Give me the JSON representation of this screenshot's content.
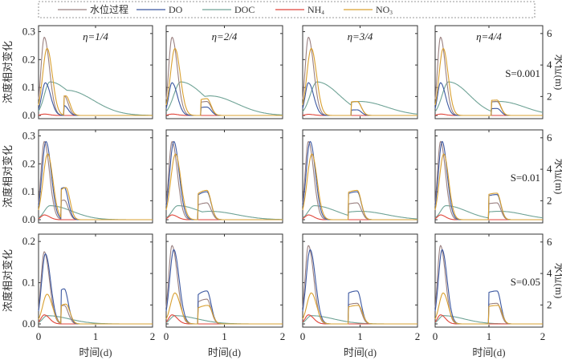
{
  "chart_data": {
    "type": "line",
    "legend": {
      "placement": "top",
      "entries": [
        {
          "key": "wl",
          "label": "水位过程",
          "color": "#9a8080"
        },
        {
          "key": "do",
          "label": "DO",
          "color": "#3b57a0"
        },
        {
          "key": "doc",
          "label": "DOC",
          "color": "#6fa396"
        },
        {
          "key": "nh4",
          "label": "NH",
          "sub": "4",
          "color": "#e0453a"
        },
        {
          "key": "no3",
          "label": "NO",
          "sub": "3",
          "color": "#d9a030"
        }
      ]
    },
    "ylabel_left": "浓度相对变化",
    "ylabel_right": "水位(m)",
    "xlabel": "时间(d)",
    "xlim": [
      0,
      2
    ],
    "xticks": [
      "0",
      "1",
      "2"
    ],
    "right_ylim": [
      1,
      6.5
    ],
    "right_yticks": [
      "2",
      "4",
      "6"
    ],
    "columns": [
      "η=1/4",
      "η=2/4",
      "η=3/4",
      "η=4/4"
    ],
    "rows": [
      {
        "s_label": "S=0.001",
        "ylim": [
          0,
          0.31
        ],
        "yticks": [
          "0.0",
          "0.1",
          "0.2",
          "0.3"
        ]
      },
      {
        "s_label": "S=0.01",
        "ylim": [
          0,
          0.31
        ],
        "yticks": [
          "0.0",
          "0.1",
          "0.2",
          "0.3"
        ]
      },
      {
        "s_label": "S=0.05",
        "ylim": [
          0,
          0.21
        ],
        "yticks": [
          "0.0",
          "0.1",
          "0.2"
        ]
      }
    ],
    "panels": [
      {
        "row": 0,
        "col": 0,
        "peaks": {
          "wl": [
            [
              0.1,
              0.28
            ],
            [
              0.45,
              0.07
            ]
          ],
          "do": [
            [
              0.12,
              0.117
            ],
            [
              0.45,
              0.035
            ]
          ],
          "doc": [
            [
              0.2,
              0.12
            ],
            [
              0.5,
              0.09
            ]
          ],
          "nh4": [
            [
              0.1,
              0.005
            ]
          ],
          "no3": [
            [
              0.15,
              0.24
            ],
            [
              0.48,
              0.07
            ]
          ]
        },
        "second_event": 0.45
      },
      {
        "row": 0,
        "col": 1,
        "peaks": {
          "wl": [
            [
              0.1,
              0.28
            ],
            [
              0.7,
              0.05
            ]
          ],
          "do": [
            [
              0.1,
              0.117
            ],
            [
              0.7,
              0.03
            ]
          ],
          "doc": [
            [
              0.25,
              0.12
            ],
            [
              0.75,
              0.07
            ]
          ],
          "nh4": [
            [
              0.1,
              0.005
            ]
          ],
          "no3": [
            [
              0.15,
              0.24
            ],
            [
              0.7,
              0.06
            ]
          ]
        },
        "second_event": 0.6
      },
      {
        "row": 0,
        "col": 2,
        "peaks": {
          "wl": [
            [
              0.1,
              0.28
            ],
            [
              0.95,
              0.05
            ]
          ],
          "do": [
            [
              0.1,
              0.117
            ],
            [
              0.95,
              0.02
            ]
          ],
          "doc": [
            [
              0.25,
              0.12
            ],
            [
              1.0,
              0.05
            ]
          ],
          "nh4": [
            [
              0.1,
              0.004
            ]
          ],
          "no3": [
            [
              0.15,
              0.24
            ],
            [
              0.95,
              0.05
            ]
          ]
        },
        "second_event": 0.85
      },
      {
        "row": 0,
        "col": 3,
        "peaks": {
          "wl": [
            [
              0.1,
              0.28
            ],
            [
              1.15,
              0.05
            ]
          ],
          "do": [
            [
              0.1,
              0.117
            ],
            [
              1.15,
              0.025
            ]
          ],
          "doc": [
            [
              0.25,
              0.12
            ],
            [
              1.2,
              0.05
            ]
          ],
          "nh4": [
            [
              0.1,
              0.005
            ]
          ],
          "no3": [
            [
              0.15,
              0.24
            ],
            [
              1.15,
              0.055
            ]
          ]
        },
        "second_event": 1.05
      },
      {
        "row": 1,
        "col": 0,
        "peaks": {
          "wl": [
            [
              0.1,
              0.28
            ],
            [
              0.45,
              0.07
            ]
          ],
          "do": [
            [
              0.13,
              0.28
            ],
            [
              0.45,
              0.115
            ]
          ],
          "doc": [
            [
              0.2,
              0.05
            ]
          ],
          "nh4": [
            [
              0.1,
              0.017
            ]
          ],
          "no3": [
            [
              0.16,
              0.235
            ],
            [
              0.48,
              0.115
            ]
          ]
        },
        "second_event": 0.4
      },
      {
        "row": 1,
        "col": 1,
        "peaks": {
          "wl": [
            [
              0.1,
              0.28
            ],
            [
              0.7,
              0.06
            ]
          ],
          "do": [
            [
              0.13,
              0.28
            ],
            [
              0.7,
              0.1
            ]
          ],
          "doc": [
            [
              0.2,
              0.05
            ],
            [
              0.75,
              0.03
            ]
          ],
          "nh4": [
            [
              0.1,
              0.017
            ]
          ],
          "no3": [
            [
              0.16,
              0.235
            ],
            [
              0.7,
              0.105
            ]
          ]
        },
        "second_event": 0.55
      },
      {
        "row": 1,
        "col": 2,
        "peaks": {
          "wl": [
            [
              0.1,
              0.28
            ],
            [
              0.95,
              0.06
            ]
          ],
          "do": [
            [
              0.13,
              0.28
            ],
            [
              0.95,
              0.1
            ]
          ],
          "doc": [
            [
              0.2,
              0.05
            ],
            [
              1.0,
              0.03
            ]
          ],
          "nh4": [
            [
              0.1,
              0.017
            ]
          ],
          "no3": [
            [
              0.16,
              0.235
            ],
            [
              0.95,
              0.105
            ]
          ]
        },
        "second_event": 0.8
      },
      {
        "row": 1,
        "col": 3,
        "peaks": {
          "wl": [
            [
              0.1,
              0.28
            ],
            [
              1.15,
              0.06
            ]
          ],
          "do": [
            [
              0.13,
              0.28
            ],
            [
              1.15,
              0.09
            ]
          ],
          "doc": [
            [
              0.2,
              0.05
            ],
            [
              1.2,
              0.03
            ]
          ],
          "nh4": [
            [
              0.1,
              0.017
            ]
          ],
          "no3": [
            [
              0.16,
              0.235
            ],
            [
              1.15,
              0.095
            ]
          ]
        },
        "second_event": 1.0
      },
      {
        "row": 2,
        "col": 0,
        "peaks": {
          "wl": [
            [
              0.1,
              0.175
            ],
            [
              0.45,
              0.045
            ]
          ],
          "do": [
            [
              0.12,
              0.17
            ],
            [
              0.45,
              0.085
            ]
          ],
          "doc": [
            [
              0.15,
              0.02
            ]
          ],
          "nh4": [
            [
              0.1,
              0.022
            ]
          ],
          "no3": [
            [
              0.15,
              0.072
            ],
            [
              0.48,
              0.048
            ]
          ]
        },
        "second_event": 0.4
      },
      {
        "row": 2,
        "col": 1,
        "peaks": {
          "wl": [
            [
              0.1,
              0.19
            ],
            [
              0.7,
              0.06
            ]
          ],
          "do": [
            [
              0.13,
              0.18
            ],
            [
              0.7,
              0.08
            ]
          ],
          "doc": [
            [
              0.15,
              0.02
            ]
          ],
          "nh4": [
            [
              0.1,
              0.022
            ]
          ],
          "no3": [
            [
              0.15,
              0.075
            ],
            [
              0.72,
              0.045
            ]
          ]
        },
        "second_event": 0.55
      },
      {
        "row": 2,
        "col": 2,
        "peaks": {
          "wl": [
            [
              0.1,
              0.19
            ],
            [
              0.95,
              0.05
            ]
          ],
          "do": [
            [
              0.13,
              0.18
            ],
            [
              0.95,
              0.08
            ]
          ],
          "doc": [
            [
              0.15,
              0.02
            ]
          ],
          "nh4": [
            [
              0.1,
              0.022
            ]
          ],
          "no3": [
            [
              0.15,
              0.075
            ],
            [
              0.97,
              0.045
            ]
          ]
        },
        "second_event": 0.8
      },
      {
        "row": 2,
        "col": 3,
        "peaks": {
          "wl": [
            [
              0.1,
              0.19
            ],
            [
              1.15,
              0.05
            ]
          ],
          "do": [
            [
              0.13,
              0.18
            ],
            [
              1.15,
              0.08
            ]
          ],
          "doc": [
            [
              0.15,
              0.02
            ]
          ],
          "nh4": [
            [
              0.1,
              0.022
            ]
          ],
          "no3": [
            [
              0.15,
              0.075
            ],
            [
              1.17,
              0.045
            ]
          ]
        },
        "second_event": 1.0
      }
    ]
  }
}
